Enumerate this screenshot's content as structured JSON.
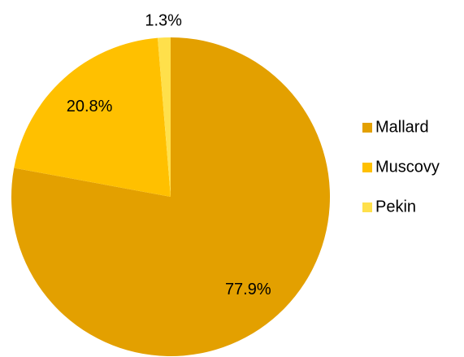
{
  "chart_data": {
    "type": "pie",
    "categories": [
      "Mallard",
      "Muscovy",
      "Pekin"
    ],
    "values": [
      77.9,
      20.8,
      1.3
    ],
    "value_labels": [
      "77.9%",
      "20.8%",
      "1.3%"
    ],
    "colors": [
      "#E3A000",
      "#FFC000",
      "#FFE04B"
    ],
    "legend": "right"
  }
}
